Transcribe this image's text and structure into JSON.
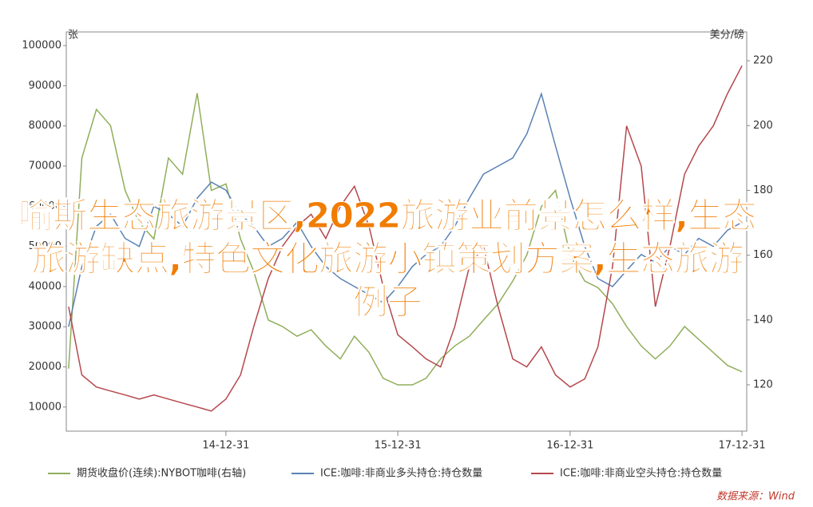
{
  "chart_data": {
    "type": "line",
    "title": "喻斯生态旅游景区,2022旅游业前景怎么样,生态旅游缺点,特色文化旅游小镇策划方案,生态旅游例子",
    "y_label": "张",
    "y2_label": "美分/磅",
    "source": "数据来源：Wind",
    "x": [
      "14-01-31",
      "14-02-28",
      "14-03-31",
      "14-04-30",
      "14-05-31",
      "14-06-30",
      "14-07-31",
      "14-08-31",
      "14-09-30",
      "14-10-31",
      "14-11-30",
      "14-12-31",
      "15-01-31",
      "15-02-28",
      "15-03-31",
      "15-04-30",
      "15-05-31",
      "15-06-30",
      "15-07-31",
      "15-08-31",
      "15-09-30",
      "15-10-31",
      "15-11-30",
      "15-12-31",
      "16-01-31",
      "16-02-29",
      "16-03-31",
      "16-04-30",
      "16-05-31",
      "16-06-30",
      "16-07-31",
      "16-08-31",
      "16-09-30",
      "16-10-31",
      "16-11-30",
      "16-12-31",
      "17-01-31",
      "17-02-28",
      "17-03-31",
      "17-04-30",
      "17-05-31",
      "17-06-30",
      "17-07-31",
      "17-08-31",
      "17-09-30",
      "17-10-31",
      "17-11-30",
      "17-12-31"
    ],
    "xlim": [
      "14-01-26",
      "18-01-10"
    ],
    "xticks": [
      "14-12-31",
      "15-12-31",
      "16-12-31",
      "17-12-31"
    ],
    "ylim": [
      4000,
      103400
    ],
    "yticks": [
      10000,
      20000,
      30000,
      40000,
      50000,
      60000,
      70000,
      80000,
      90000,
      100000
    ],
    "y2lim": [
      105.7,
      228.9
    ],
    "y2ticks": [
      120,
      140,
      160,
      180,
      200,
      220
    ],
    "series": [
      {
        "name": "期货收盘价(连续):NYBOT咖啡(右轴)",
        "color": "#8fae5a",
        "axis": "y2",
        "values": [
          125,
          190,
          205,
          200,
          180,
          170,
          165,
          190,
          185,
          210,
          180,
          182,
          165,
          155,
          140,
          138,
          135,
          137,
          132,
          128,
          135,
          130,
          122,
          120,
          120,
          122,
          128,
          132,
          135,
          140,
          145,
          152,
          160,
          175,
          180,
          160,
          152,
          150,
          145,
          138,
          132,
          128,
          132,
          138,
          134,
          130,
          126,
          124
        ]
      },
      {
        "name": "ICE:咖啡:非商业多头持仓:持仓数量",
        "color": "#5b82b4",
        "values": [
          30000,
          45000,
          55000,
          58000,
          52000,
          50000,
          60000,
          58000,
          55000,
          62000,
          66000,
          64000,
          58000,
          55000,
          50000,
          52000,
          56000,
          50000,
          45000,
          42000,
          40000,
          38000,
          36000,
          40000,
          45000,
          48000,
          50000,
          55000,
          62000,
          68000,
          70000,
          72000,
          78000,
          88000,
          75000,
          62000,
          50000,
          42000,
          40000,
          44000,
          48000,
          46000,
          50000,
          48000,
          52000,
          50000,
          54000,
          56000
        ]
      },
      {
        "name": "ICE:咖啡:非商业空头持仓:持仓数量",
        "color": "#b5474c",
        "values": [
          35000,
          18000,
          15000,
          14000,
          13000,
          12000,
          13000,
          12000,
          11000,
          10000,
          9000,
          12000,
          18000,
          30000,
          42000,
          50000,
          55000,
          58000,
          52000,
          60000,
          65000,
          55000,
          40000,
          28000,
          25000,
          22000,
          20000,
          30000,
          45000,
          50000,
          35000,
          22000,
          20000,
          25000,
          18000,
          15000,
          17000,
          25000,
          45000,
          80000,
          70000,
          35000,
          50000,
          68000,
          75000,
          80000,
          88000,
          95000
        ]
      }
    ]
  }
}
